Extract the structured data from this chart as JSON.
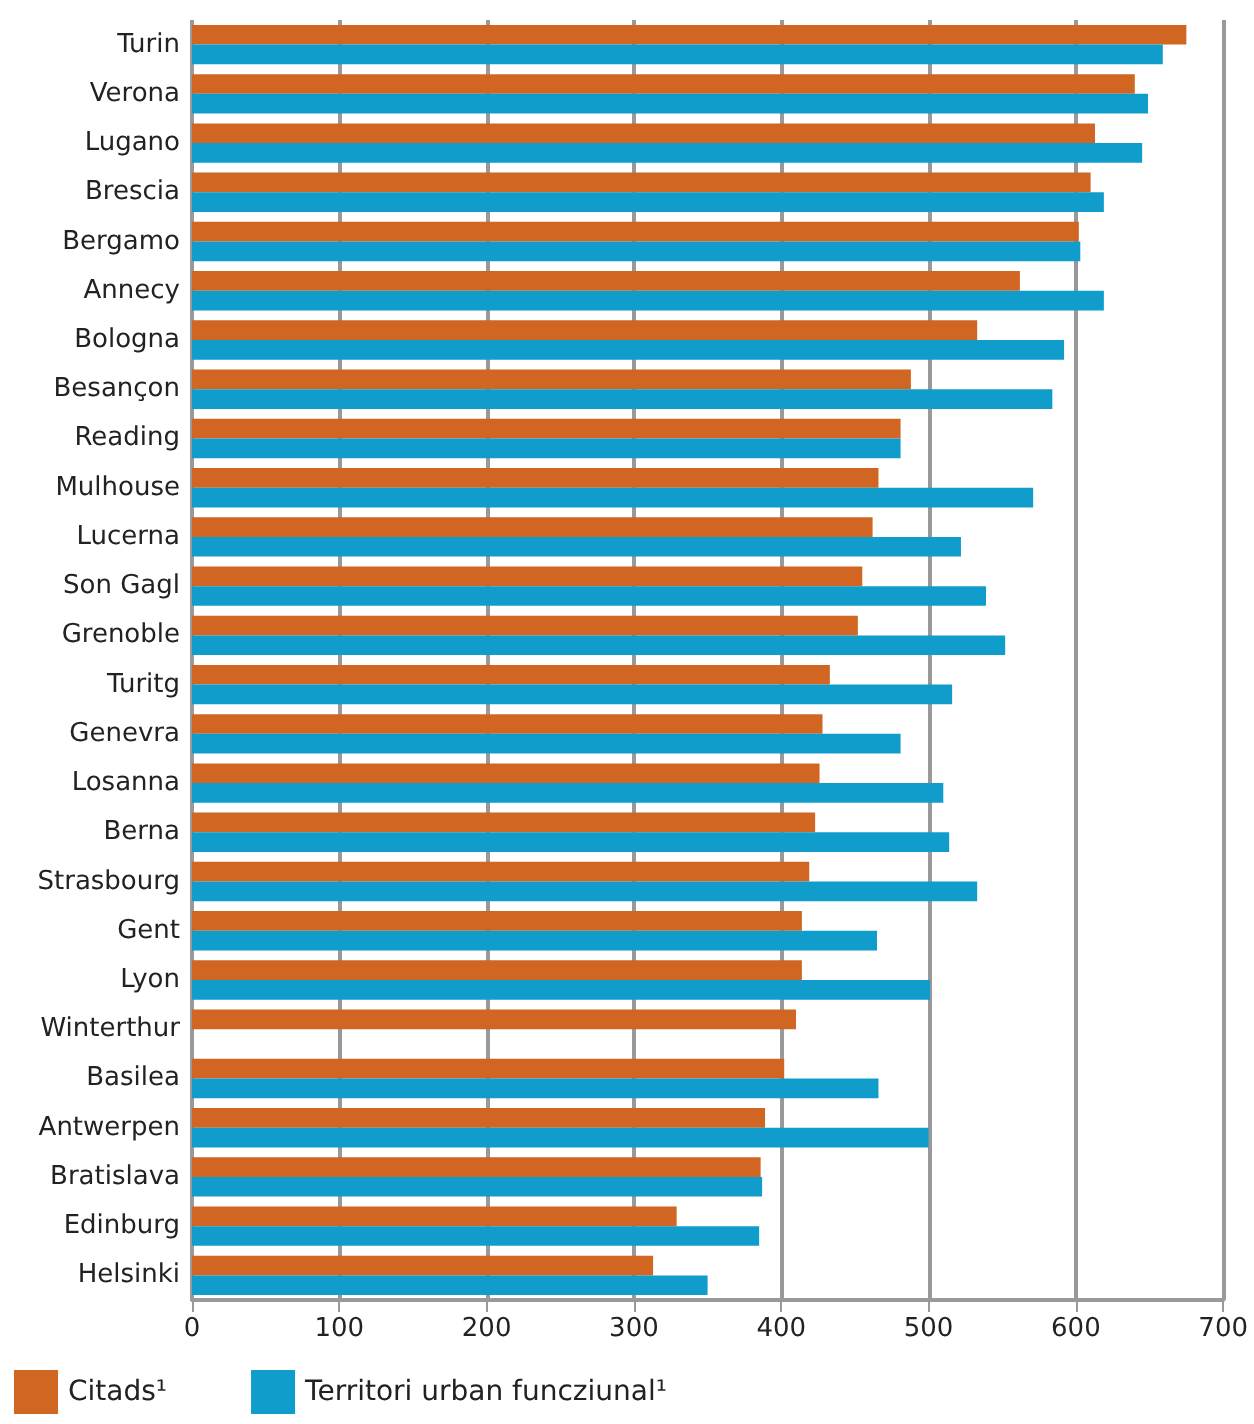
{
  "chart_data": {
    "type": "bar",
    "orientation": "horizontal",
    "categories": [
      "Turin",
      "Verona",
      "Lugano",
      "Brescia",
      "Bergamo",
      "Annecy",
      "Bologna",
      "Besançon",
      "Reading",
      "Mulhouse",
      "Lucerna",
      "Son Gagl",
      "Grenoble",
      "Turitg",
      "Genevra",
      "Losanna",
      "Berna",
      "Strasbourg",
      "Gent",
      "Lyon",
      "Winterthur",
      "Basilea",
      "Antwerpen",
      "Bratislava",
      "Edinburg",
      "Helsinki"
    ],
    "series": [
      {
        "name": "Citads¹",
        "color": "#d06622",
        "values": [
          675,
          640,
          613,
          610,
          602,
          562,
          533,
          488,
          481,
          466,
          462,
          455,
          452,
          433,
          428,
          426,
          423,
          419,
          414,
          414,
          410,
          402,
          389,
          386,
          329,
          313
        ]
      },
      {
        "name": "Territori urban funcziunal¹",
        "color": "#109dcb",
        "values": [
          659,
          649,
          645,
          619,
          603,
          619,
          592,
          584,
          481,
          571,
          522,
          539,
          552,
          516,
          481,
          510,
          514,
          533,
          465,
          501,
          null,
          466,
          500,
          387,
          385,
          350
        ]
      }
    ],
    "xlim": [
      0,
      700
    ],
    "xticks": [
      0,
      100,
      200,
      300,
      400,
      500,
      600,
      700
    ],
    "grid": "x",
    "legend": "bottom left"
  }
}
